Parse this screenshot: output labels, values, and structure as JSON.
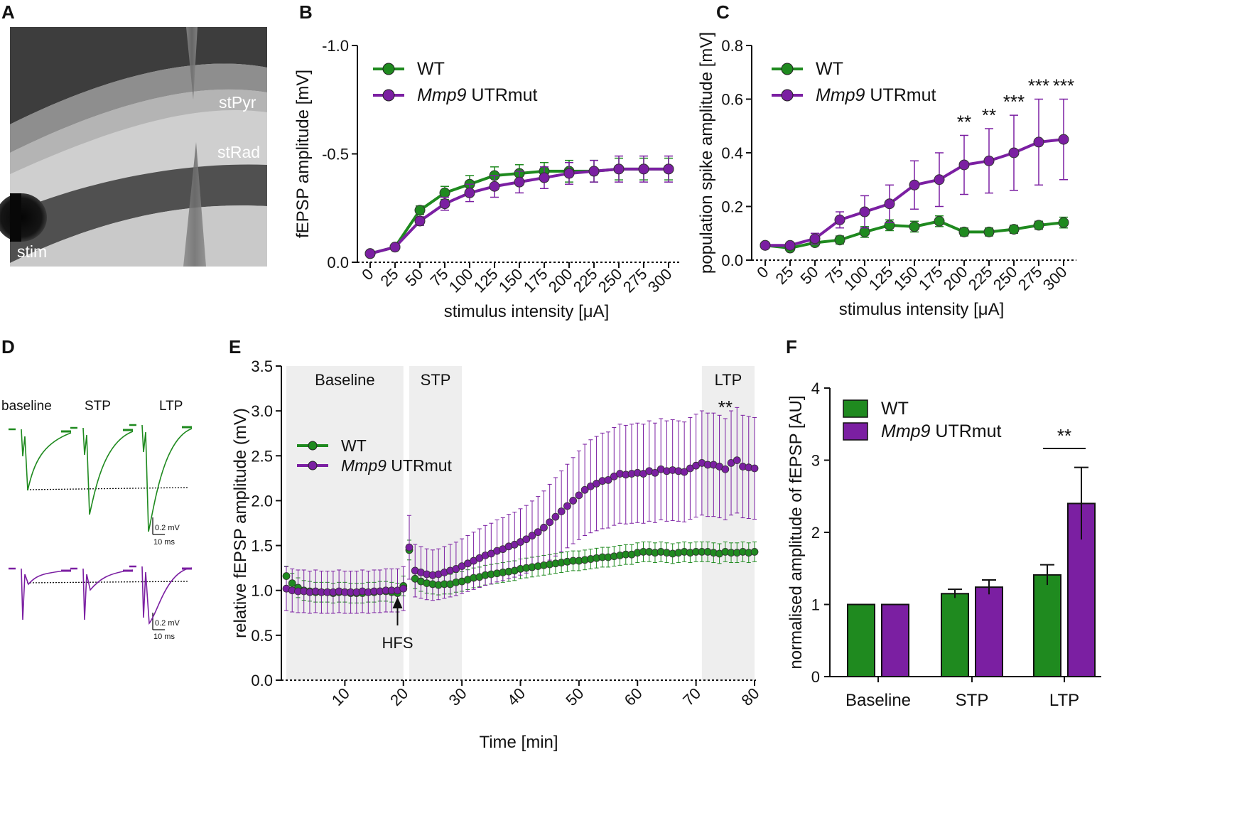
{
  "colors": {
    "wt": "#1f8a1f",
    "mut": "#7b1fa2",
    "shade": "#eeeeee"
  },
  "panels": {
    "A": "A",
    "B": "B",
    "C": "C",
    "D": "D",
    "E": "E",
    "F": "F"
  },
  "panelA": {
    "labels": {
      "stPyr": "stPyr",
      "stRad": "stRad",
      "stim": "stim"
    }
  },
  "legend": {
    "wt": "WT",
    "mut_italic": "Mmp9",
    "mut_rest": " UTRmut"
  },
  "panelD": {
    "labels": {
      "baseline": "baseline",
      "stp": "STP",
      "ltp": "LTP"
    },
    "scalebar_wt": {
      "v": "0.2 mV",
      "t": "10 ms"
    },
    "scalebar_mut": {
      "v": "0.2 mV",
      "t": "10 ms"
    }
  },
  "chart_data": [
    {
      "id": "B",
      "type": "line",
      "title": "",
      "xlabel": "stimulus intensity [μA]",
      "ylabel": "fEPSP amplitude [mV]",
      "x": [
        0,
        25,
        50,
        75,
        100,
        125,
        150,
        175,
        200,
        225,
        250,
        275,
        300
      ],
      "ylim": [
        0.0,
        -1.0
      ],
      "yticks": [
        "-1.0",
        "-0.5",
        "0.0"
      ],
      "ytick_values": [
        -1.0,
        -0.5,
        0.0
      ],
      "series": [
        {
          "name": "WT",
          "values": [
            -0.04,
            -0.07,
            -0.24,
            -0.32,
            -0.36,
            -0.4,
            -0.41,
            -0.42,
            -0.42,
            -0.42,
            -0.43,
            -0.43,
            -0.43
          ],
          "err": [
            0.01,
            0.01,
            0.02,
            0.03,
            0.04,
            0.04,
            0.04,
            0.04,
            0.05,
            0.05,
            0.05,
            0.05,
            0.05
          ]
        },
        {
          "name": "Mmp9 UTRmut",
          "values": [
            -0.04,
            -0.07,
            -0.19,
            -0.27,
            -0.32,
            -0.35,
            -0.37,
            -0.39,
            -0.41,
            -0.42,
            -0.43,
            -0.43,
            -0.43
          ],
          "err": [
            0.01,
            0.01,
            0.02,
            0.03,
            0.04,
            0.05,
            0.05,
            0.05,
            0.05,
            0.05,
            0.06,
            0.06,
            0.06
          ]
        }
      ]
    },
    {
      "id": "C",
      "type": "line",
      "title": "",
      "xlabel": "stimulus intensity [μA]",
      "ylabel": "population spike amplitude [mV]",
      "x": [
        0,
        25,
        50,
        75,
        100,
        125,
        150,
        175,
        200,
        225,
        250,
        275,
        300
      ],
      "ylim": [
        0.0,
        0.8
      ],
      "yticks": [
        "0.0",
        "0.2",
        "0.4",
        "0.6",
        "0.8"
      ],
      "ytick_values": [
        0.0,
        0.2,
        0.4,
        0.6,
        0.8
      ],
      "series": [
        {
          "name": "WT",
          "values": [
            0.055,
            0.045,
            0.065,
            0.075,
            0.105,
            0.13,
            0.125,
            0.145,
            0.105,
            0.105,
            0.115,
            0.13,
            0.14
          ],
          "err": [
            0.01,
            0.01,
            0.01,
            0.015,
            0.02,
            0.02,
            0.02,
            0.02,
            0.015,
            0.015,
            0.015,
            0.015,
            0.02
          ]
        },
        {
          "name": "Mmp9 UTRmut",
          "values": [
            0.055,
            0.055,
            0.08,
            0.15,
            0.18,
            0.21,
            0.28,
            0.3,
            0.355,
            0.37,
            0.4,
            0.44,
            0.45
          ],
          "err": [
            0.01,
            0.01,
            0.02,
            0.03,
            0.06,
            0.07,
            0.09,
            0.1,
            0.11,
            0.12,
            0.14,
            0.16,
            0.15
          ]
        }
      ],
      "annotations": [
        {
          "x": 200,
          "text": "**"
        },
        {
          "x": 225,
          "text": "**"
        },
        {
          "x": 250,
          "text": "***"
        },
        {
          "x": 275,
          "text": "***"
        },
        {
          "x": 300,
          "text": "***"
        }
      ]
    },
    {
      "id": "E",
      "type": "line",
      "title": "",
      "xlabel": "Time [min]",
      "ylabel": "relative fEPSP amplitude (mV)",
      "xlim": [
        0,
        80
      ],
      "xticks": [
        10,
        20,
        30,
        40,
        50,
        60,
        70,
        80
      ],
      "ylim": [
        0.0,
        3.5
      ],
      "yticks": [
        "0.0",
        "0.5",
        "1.0",
        "1.5",
        "2.0",
        "2.5",
        "3.0",
        "3.5"
      ],
      "ytick_values": [
        0.0,
        0.5,
        1.0,
        1.5,
        2.0,
        2.5,
        3.0,
        3.5
      ],
      "regions": [
        {
          "label": "Baseline",
          "from": 0,
          "to": 20
        },
        {
          "label": "STP",
          "from": 21,
          "to": 30
        },
        {
          "label": "LTP",
          "from": 71,
          "to": 80
        }
      ],
      "hfs_label": "HFS",
      "hfs_x": 19,
      "ltp_stars": "**",
      "series": [
        {
          "name": "WT",
          "x": [
            0,
            1,
            2,
            3,
            4,
            5,
            6,
            7,
            8,
            9,
            10,
            11,
            12,
            13,
            14,
            15,
            16,
            17,
            18,
            19,
            20,
            21,
            22,
            23,
            24,
            25,
            26,
            27,
            28,
            29,
            30,
            31,
            32,
            33,
            34,
            35,
            36,
            37,
            38,
            39,
            40,
            41,
            42,
            43,
            44,
            45,
            46,
            47,
            48,
            49,
            50,
            51,
            52,
            53,
            54,
            55,
            56,
            57,
            58,
            59,
            60,
            61,
            62,
            63,
            64,
            65,
            66,
            67,
            68,
            69,
            70,
            71,
            72,
            73,
            74,
            75,
            76,
            77,
            78,
            79,
            80
          ],
          "values": [
            1.16,
            1.08,
            1.03,
            1.0,
            0.99,
            0.98,
            0.98,
            0.98,
            0.97,
            0.98,
            0.98,
            0.97,
            0.97,
            0.97,
            0.98,
            0.98,
            0.99,
            0.99,
            0.98,
            0.97,
            1.05,
            1.45,
            1.13,
            1.1,
            1.08,
            1.07,
            1.06,
            1.07,
            1.07,
            1.09,
            1.1,
            1.12,
            1.14,
            1.15,
            1.17,
            1.18,
            1.19,
            1.2,
            1.21,
            1.22,
            1.24,
            1.25,
            1.26,
            1.27,
            1.28,
            1.29,
            1.3,
            1.31,
            1.32,
            1.33,
            1.33,
            1.34,
            1.35,
            1.36,
            1.37,
            1.37,
            1.38,
            1.39,
            1.4,
            1.4,
            1.42,
            1.43,
            1.43,
            1.42,
            1.43,
            1.42,
            1.41,
            1.42,
            1.43,
            1.42,
            1.43,
            1.43,
            1.43,
            1.42,
            1.41,
            1.43,
            1.42,
            1.42,
            1.43,
            1.42,
            1.43
          ],
          "err": 0.11
        },
        {
          "name": "Mmp9 UTRmut",
          "x": [
            0,
            1,
            2,
            3,
            4,
            5,
            6,
            7,
            8,
            9,
            10,
            11,
            12,
            13,
            14,
            15,
            16,
            17,
            18,
            19,
            20,
            21,
            22,
            23,
            24,
            25,
            26,
            27,
            28,
            29,
            30,
            31,
            32,
            33,
            34,
            35,
            36,
            37,
            38,
            39,
            40,
            41,
            42,
            43,
            44,
            45,
            46,
            47,
            48,
            49,
            50,
            51,
            52,
            53,
            54,
            55,
            56,
            57,
            58,
            59,
            60,
            61,
            62,
            63,
            64,
            65,
            66,
            67,
            68,
            69,
            70,
            71,
            72,
            73,
            74,
            75,
            76,
            77,
            78,
            79,
            80
          ],
          "values": [
            1.02,
            1.0,
            0.99,
            0.99,
            0.98,
            0.99,
            0.98,
            0.98,
            0.98,
            0.99,
            0.98,
            0.98,
            0.98,
            0.99,
            0.98,
            0.99,
            0.99,
            1.0,
            1.0,
            1.0,
            1.02,
            1.48,
            1.22,
            1.2,
            1.18,
            1.17,
            1.18,
            1.2,
            1.22,
            1.24,
            1.27,
            1.3,
            1.33,
            1.36,
            1.39,
            1.41,
            1.44,
            1.46,
            1.49,
            1.51,
            1.54,
            1.57,
            1.61,
            1.65,
            1.7,
            1.76,
            1.82,
            1.88,
            1.94,
            2.0,
            2.06,
            2.12,
            2.16,
            2.19,
            2.22,
            2.23,
            2.27,
            2.3,
            2.29,
            2.3,
            2.31,
            2.3,
            2.33,
            2.31,
            2.35,
            2.33,
            2.34,
            2.33,
            2.32,
            2.36,
            2.39,
            2.42,
            2.4,
            2.4,
            2.38,
            2.35,
            2.42,
            2.45,
            2.38,
            2.37,
            2.36
          ],
          "err_frac": 0.24
        }
      ]
    },
    {
      "id": "F",
      "type": "bar",
      "title": "",
      "xlabel": "",
      "ylabel": "normalised amplitude of fEPSP [AU]",
      "categories": [
        "Baseline",
        "STP",
        "LTP"
      ],
      "ylim": [
        0,
        4
      ],
      "yticks": [
        "0",
        "1",
        "2",
        "3",
        "4"
      ],
      "ytick_values": [
        0,
        1,
        2,
        3,
        4
      ],
      "series": [
        {
          "name": "WT",
          "values": [
            1.0,
            1.15,
            1.41
          ],
          "err": [
            0,
            0.06,
            0.14
          ]
        },
        {
          "name": "Mmp9 UTRmut",
          "values": [
            1.0,
            1.24,
            2.4
          ],
          "err": [
            0,
            0.1,
            0.5
          ]
        }
      ],
      "significance": {
        "category": "LTP",
        "text": "**"
      }
    }
  ]
}
